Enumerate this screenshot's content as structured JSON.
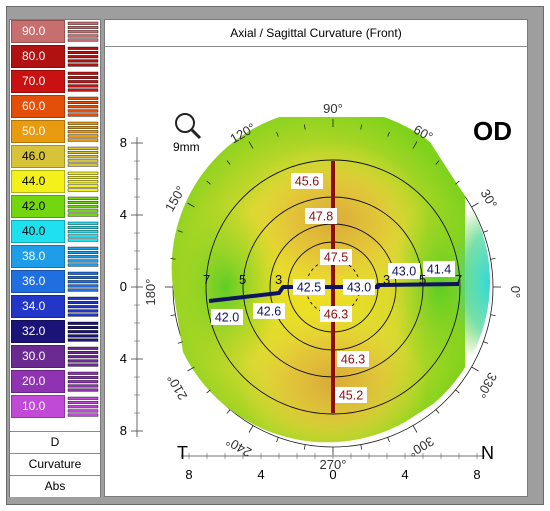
{
  "title": "Axial / Sagittal Curvature (Front)",
  "eye": "OD",
  "zoom_label": "9mm",
  "scale": [
    {
      "value": "90.0",
      "color": "#c76f6f"
    },
    {
      "value": "80.0",
      "color": "#b01212"
    },
    {
      "value": "70.0",
      "color": "#c91111"
    },
    {
      "value": "60.0",
      "color": "#e34f09"
    },
    {
      "value": "50.0",
      "color": "#e89b0f"
    },
    {
      "value": "46.0",
      "color": "#d7c33a"
    },
    {
      "value": "44.0",
      "color": "#f4f019"
    },
    {
      "value": "42.0",
      "color": "#74d60f"
    },
    {
      "value": "40.0",
      "color": "#1ee0ef"
    },
    {
      "value": "38.0",
      "color": "#1e9ee9"
    },
    {
      "value": "36.0",
      "color": "#1f6fe0"
    },
    {
      "value": "34.0",
      "color": "#2236c7"
    },
    {
      "value": "32.0",
      "color": "#1a1478"
    },
    {
      "value": "30.0",
      "color": "#6b2a92"
    },
    {
      "value": "20.0",
      "color": "#8f33b2"
    },
    {
      "value": "10.0",
      "color": "#c04ad6"
    }
  ],
  "legend_footer": {
    "unit": "D",
    "map_type": "Curvature",
    "mode": "Abs"
  },
  "axes": {
    "left_ticks": [
      "8",
      "4",
      "0",
      "4",
      "8"
    ],
    "bottom_ticks": [
      "8",
      "4",
      "0",
      "4",
      "8"
    ]
  },
  "angles": [
    "90°",
    "60°",
    "30°",
    "0°",
    "330°",
    "300°",
    "270°",
    "240°",
    "210°",
    "180°",
    "150°",
    "120°"
  ],
  "side_labels": {
    "temporal": "T",
    "nasal": "N"
  },
  "ring_labels": [
    "7",
    "5",
    "3",
    "3",
    "5",
    "7"
  ],
  "readings": {
    "vertical": [
      "45.6",
      "47.8",
      "47.5",
      "46.3",
      "46.3",
      "45.2"
    ],
    "horizontal": [
      "42.5",
      "43.0",
      "43.0",
      "41.4",
      "42.6",
      "42.0"
    ]
  },
  "colors": {
    "steep_axis": "#8b0d0d",
    "flat_axis": "#0f1460"
  }
}
